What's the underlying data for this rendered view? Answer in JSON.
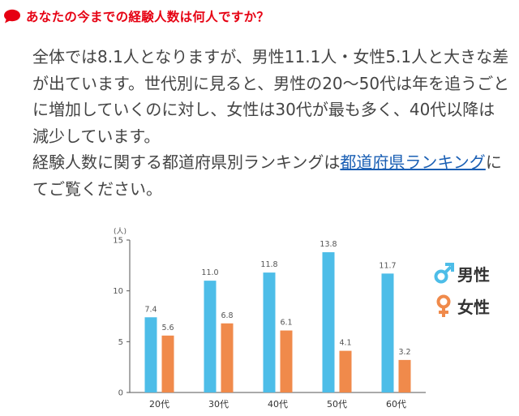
{
  "heading": {
    "text": "あなたの今までの経験人数は何人ですか？"
  },
  "paragraph": {
    "text1": "全体では8.1人となりますが、男性11.1人・女性5.1人と大きな差が出ています。世代別に見ると、男性の20〜50代は年を追うごとに増加していくのに対し、女性は30代が最も多く、40代以降は減少しています。",
    "text2": "経験人数に関する都道府県別ランキングは",
    "link": "都道府県ランキング",
    "text3": "にてご覧ください。"
  },
  "colors": {
    "heading": "#e60012",
    "male": "#4dbde8",
    "female": "#f08a4b",
    "link": "#1a5fb4"
  },
  "legend": {
    "male": {
      "label": "男性",
      "icon": "male-symbol-icon"
    },
    "female": {
      "label": "女性",
      "icon": "female-symbol-icon"
    }
  },
  "chart_data": {
    "type": "bar",
    "categories": [
      "20代",
      "30代",
      "40代",
      "50代",
      "60代"
    ],
    "series": [
      {
        "name": "男性",
        "values": [
          7.4,
          11.0,
          11.8,
          13.8,
          11.7
        ]
      },
      {
        "name": "女性",
        "values": [
          5.6,
          6.8,
          6.1,
          4.1,
          3.2
        ]
      }
    ],
    "value_labels": {
      "男性": [
        "7.4",
        "11.0",
        "11.8",
        "13.8",
        "11.7"
      ],
      "女性": [
        "5.6",
        "6.8",
        "6.1",
        "4.1",
        "3.2"
      ]
    },
    "yunit": "(人)",
    "yticks": [
      "0",
      "5",
      "10",
      "15"
    ],
    "ylim": [
      0,
      15
    ],
    "grid": false,
    "legend_position": "right"
  }
}
